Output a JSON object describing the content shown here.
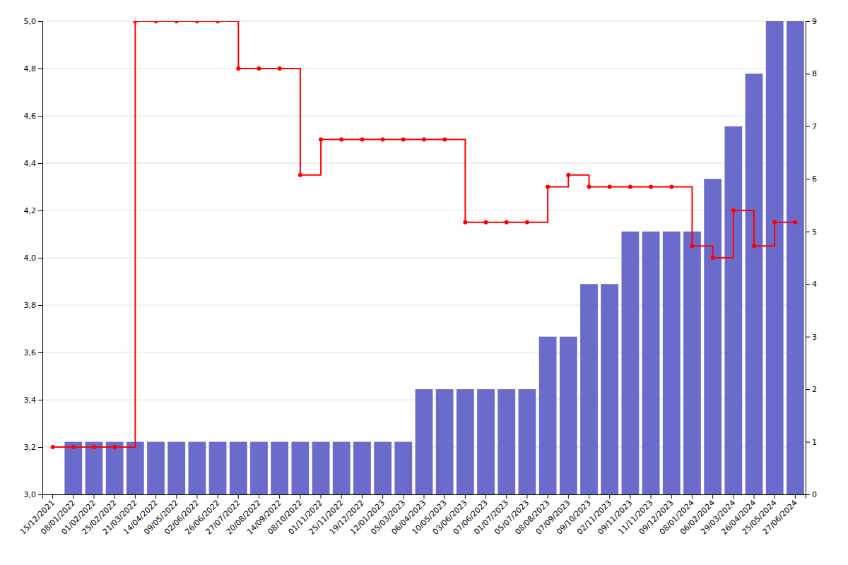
{
  "chart_data": {
    "type": "combo",
    "categories": [
      "15/12/2021",
      "08/01/2022",
      "01/02/2022",
      "25/02/2022",
      "21/03/2022",
      "14/04/2022",
      "09/05/2022",
      "02/06/2022",
      "26/06/2022",
      "27/07/2022",
      "20/08/2022",
      "14/09/2022",
      "08/10/2022",
      "01/11/2022",
      "25/11/2022",
      "19/12/2022",
      "12/01/2023",
      "05/03/2023",
      "06/04/2023",
      "10/05/2023",
      "03/06/2023",
      "07/06/2023",
      "01/07/2023",
      "05/07/2023",
      "08/08/2023",
      "07/09/2023",
      "09/10/2023",
      "02/11/2023",
      "09/11/2023",
      "11/11/2023",
      "09/12/2023",
      "08/01/2024",
      "06/02/2024",
      "29/03/2024",
      "26/04/2024",
      "25/05/2024",
      "27/06/2024"
    ],
    "series": [
      {
        "type": "bar",
        "axis": "y2",
        "color": "#6b6bcc",
        "values": [
          0,
          1,
          1,
          1,
          1,
          1,
          1,
          1,
          1,
          1,
          1,
          1,
          1,
          1,
          1,
          1,
          1,
          1,
          2,
          2,
          2,
          2,
          2,
          2,
          3,
          3,
          4,
          4,
          5,
          5,
          5,
          5,
          6,
          7,
          8,
          9,
          9
        ]
      },
      {
        "type": "line",
        "color": "#ff0000",
        "marker": "circle",
        "line_style": "step",
        "values": [
          3.2,
          3.2,
          3.2,
          3.2,
          5.0,
          5.0,
          5.0,
          5.0,
          5.0,
          4.8,
          4.8,
          4.8,
          4.35,
          4.5,
          4.5,
          4.5,
          4.5,
          4.5,
          4.5,
          4.5,
          4.15,
          4.15,
          4.15,
          4.15,
          4.3,
          4.35,
          4.3,
          4.3,
          4.3,
          4.3,
          4.3,
          4.05,
          4.0,
          4.2,
          4.05,
          4.15,
          4.15
        ]
      }
    ],
    "ylim": [
      3.0,
      5.0
    ],
    "yticks": [
      {
        "value": 3.0,
        "label": "3,0"
      },
      {
        "value": 3.2,
        "label": "3,2"
      },
      {
        "value": 3.4,
        "label": "3,4"
      },
      {
        "value": 3.6,
        "label": "3,6"
      },
      {
        "value": 3.8,
        "label": "3,8"
      },
      {
        "value": 4.0,
        "label": "4,0"
      },
      {
        "value": 4.2,
        "label": "4,2"
      },
      {
        "value": 4.4,
        "label": "4,4"
      },
      {
        "value": 4.6,
        "label": "4,6"
      },
      {
        "value": 4.8,
        "label": "4,8"
      },
      {
        "value": 5.0,
        "label": "5,0"
      }
    ],
    "y2lim": [
      0,
      9
    ],
    "y2ticks": [
      0,
      1,
      2,
      3,
      4,
      5,
      6,
      7,
      8,
      9
    ],
    "grid": true
  }
}
